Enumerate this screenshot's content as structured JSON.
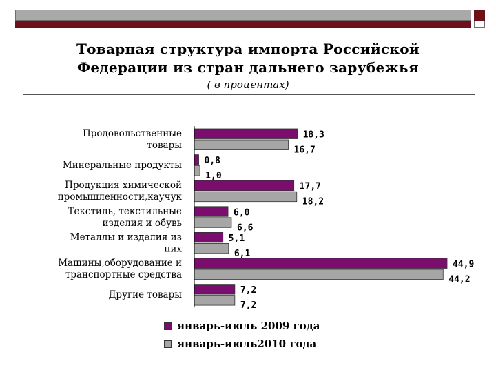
{
  "title_line1": "Товарная  структура импорта Российской",
  "title_line2": "Федерации  из стран дальнего зарубежья",
  "subtitle": "( в процентах)",
  "chart_data": {
    "type": "bar",
    "orientation": "horizontal",
    "categories": [
      [
        "Продовольственные",
        "товары"
      ],
      [
        "Минеральные продукты"
      ],
      [
        "Продукция химической",
        "промышленности,каучук"
      ],
      [
        "Текстиль, текстильные",
        "изделия и обувь"
      ],
      [
        "Металлы и изделия из",
        "них"
      ],
      [
        "Машины,оборудование и",
        "транспортные средства"
      ],
      [
        "Другие товары"
      ]
    ],
    "series": [
      {
        "name": "январь-июль 2009 года",
        "color": "#7b0d6e",
        "values": [
          18.3,
          0.8,
          17.7,
          6.0,
          5.1,
          44.9,
          7.2
        ],
        "labels": [
          "18,3",
          "0,8",
          "17,7",
          "6,0",
          "5,1",
          "44,9",
          "7,2"
        ]
      },
      {
        "name": "январь-июль2010 года",
        "color": "#a6a6a6",
        "values": [
          16.7,
          1.0,
          18.2,
          6.6,
          6.1,
          44.2,
          7.2
        ],
        "labels": [
          "16,7",
          "1,0",
          "18,2",
          "6,6",
          "6,1",
          "44,2",
          "7,2"
        ]
      }
    ],
    "xlim": [
      0,
      46
    ],
    "grid": false,
    "legend_position": "bottom"
  }
}
